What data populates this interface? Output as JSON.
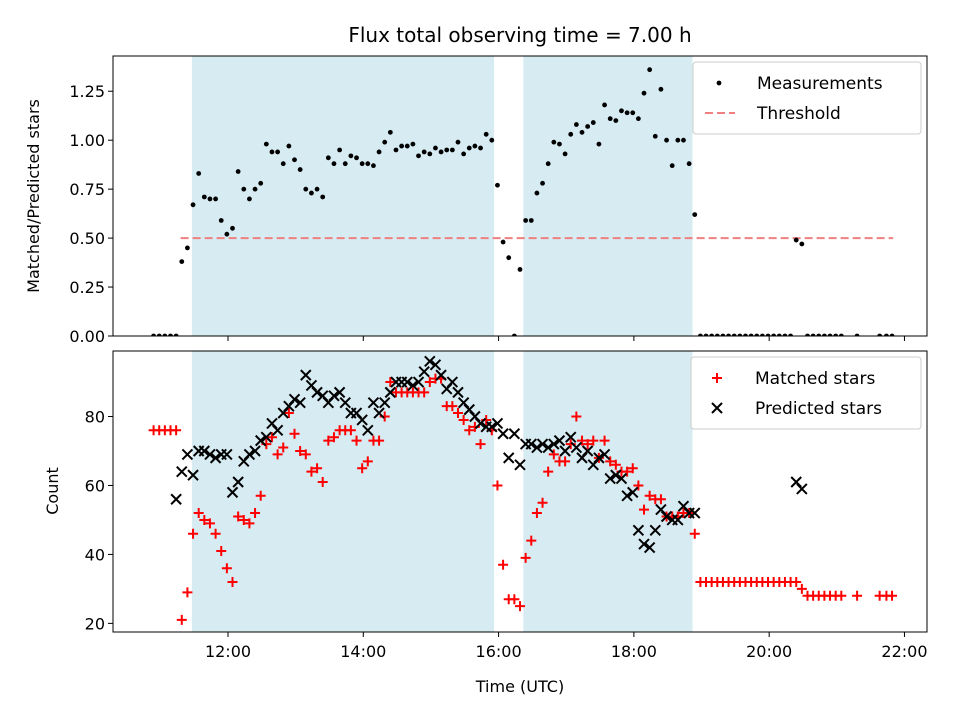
{
  "chart_data": [
    {
      "type": "scatter",
      "title": "Flux total observing time = 7.00 h",
      "xlabel": "",
      "ylabel": "Matched/Predicted stars",
      "xlim": [
        "10:18",
        "22:20"
      ],
      "ylim": [
        0,
        1.43
      ],
      "yticks": [
        "0.00",
        "0.25",
        "0.50",
        "0.75",
        "1.00",
        "1.25"
      ],
      "legend_position": "top-right",
      "shaded_spans": [
        [
          "11:28",
          "15:56"
        ],
        [
          "16:22",
          "18:52"
        ]
      ],
      "threshold": {
        "name": "Threshold",
        "color": "#f08080",
        "value": 0.5,
        "x_range": [
          "11:18",
          "21:50"
        ]
      },
      "series": [
        {
          "name": "Measurements",
          "color": "#000000",
          "marker": "dot",
          "x": [
            "10:54",
            "10:59",
            "11:04",
            "11:09",
            "11:14",
            "11:19",
            "11:24",
            "11:29",
            "11:34",
            "11:39",
            "11:44",
            "11:49",
            "11:54",
            "11:59",
            "12:04",
            "12:09",
            "12:14",
            "12:19",
            "12:24",
            "12:29",
            "12:34",
            "12:39",
            "12:44",
            "12:49",
            "12:54",
            "12:59",
            "13:04",
            "13:09",
            "13:14",
            "13:19",
            "13:24",
            "13:29",
            "13:34",
            "13:39",
            "13:44",
            "13:49",
            "13:54",
            "13:59",
            "14:04",
            "14:09",
            "14:14",
            "14:19",
            "14:24",
            "14:29",
            "14:34",
            "14:39",
            "14:44",
            "14:49",
            "14:54",
            "14:59",
            "15:04",
            "15:09",
            "15:14",
            "15:19",
            "15:24",
            "15:29",
            "15:34",
            "15:39",
            "15:44",
            "15:49",
            "15:54",
            "15:59",
            "16:04",
            "16:09",
            "16:14",
            "16:19",
            "16:24",
            "16:29",
            "16:34",
            "16:39",
            "16:44",
            "16:49",
            "16:54",
            "16:59",
            "17:04",
            "17:09",
            "17:14",
            "17:19",
            "17:24",
            "17:29",
            "17:34",
            "17:39",
            "17:44",
            "17:49",
            "17:54",
            "17:59",
            "18:04",
            "18:09",
            "18:14",
            "18:19",
            "18:24",
            "18:29",
            "18:34",
            "18:39",
            "18:44",
            "18:49",
            "18:54",
            "18:59",
            "19:04",
            "19:09",
            "19:14",
            "19:19",
            "19:24",
            "19:29",
            "19:34",
            "19:39",
            "19:44",
            "19:49",
            "19:54",
            "19:59",
            "20:04",
            "20:09",
            "20:14",
            "20:19",
            "20:24",
            "20:29",
            "20:34",
            "20:39",
            "20:44",
            "20:49",
            "20:54",
            "20:59",
            "21:04",
            "21:18",
            "21:38",
            "21:44",
            "21:49"
          ],
          "y": [
            0,
            0,
            0,
            0,
            0,
            0.38,
            0.45,
            0.67,
            0.83,
            0.71,
            0.7,
            0.7,
            0.59,
            0.52,
            0.55,
            0.84,
            0.75,
            0.7,
            0.75,
            0.78,
            0.98,
            0.94,
            0.94,
            0.88,
            0.97,
            0.9,
            0.85,
            0.75,
            0.73,
            0.75,
            0.71,
            0.91,
            0.88,
            0.95,
            0.88,
            0.92,
            0.91,
            0.88,
            0.88,
            0.87,
            0.94,
            0.99,
            1.04,
            0.95,
            0.97,
            0.97,
            0.98,
            0.92,
            0.94,
            0.93,
            0.96,
            0.94,
            0.95,
            0.95,
            0.99,
            0.93,
            0.96,
            0.97,
            0.96,
            1.03,
            1.0,
            0.77,
            0.48,
            0.4,
            0.0,
            0.34,
            0.59,
            0.59,
            0.73,
            0.78,
            0.88,
            0.99,
            0.98,
            0.93,
            1.03,
            1.08,
            1.04,
            1.07,
            1.09,
            0.98,
            1.18,
            1.11,
            1.1,
            1.15,
            1.14,
            1.14,
            1.11,
            1.24,
            1.36,
            1.02,
            1.26,
            1.0,
            0.87,
            1.0,
            1.0,
            0.88,
            0.62,
            0,
            0,
            0,
            0,
            0,
            0,
            0,
            0,
            0,
            0,
            0,
            0,
            0,
            0,
            0,
            0,
            0,
            0.49,
            0.47,
            0,
            0,
            0,
            0,
            0,
            0,
            0,
            0,
            0,
            0,
            0
          ]
        }
      ]
    },
    {
      "type": "scatter",
      "title": "",
      "xlabel": "Time (UTC)",
      "ylabel": "Count",
      "xlim": [
        "10:18",
        "22:20"
      ],
      "ylim": [
        17.5,
        99
      ],
      "yticks": [
        "20",
        "40",
        "60",
        "80"
      ],
      "xticks": [
        "12:00",
        "14:00",
        "16:00",
        "18:00",
        "20:00",
        "22:00"
      ],
      "legend_position": "top-right",
      "shaded_spans": [
        [
          "11:28",
          "15:56"
        ],
        [
          "16:22",
          "18:52"
        ]
      ],
      "series": [
        {
          "name": "Matched stars",
          "color": "#ff0000",
          "marker": "plus",
          "x": [
            "10:54",
            "10:59",
            "11:04",
            "11:09",
            "11:14",
            "11:19",
            "11:24",
            "11:29",
            "11:34",
            "11:39",
            "11:44",
            "11:49",
            "11:54",
            "11:59",
            "12:04",
            "12:09",
            "12:14",
            "12:19",
            "12:24",
            "12:29",
            "12:34",
            "12:39",
            "12:44",
            "12:49",
            "12:54",
            "12:59",
            "13:04",
            "13:09",
            "13:14",
            "13:19",
            "13:24",
            "13:29",
            "13:34",
            "13:39",
            "13:44",
            "13:49",
            "13:54",
            "13:59",
            "14:04",
            "14:09",
            "14:14",
            "14:19",
            "14:24",
            "14:29",
            "14:34",
            "14:39",
            "14:44",
            "14:49",
            "14:54",
            "14:59",
            "15:04",
            "15:09",
            "15:14",
            "15:19",
            "15:24",
            "15:29",
            "15:34",
            "15:39",
            "15:44",
            "15:49",
            "15:54",
            "15:59",
            "16:04",
            "16:09",
            "16:14",
            "16:19",
            "16:24",
            "16:29",
            "16:34",
            "16:39",
            "16:44",
            "16:49",
            "16:54",
            "16:59",
            "17:04",
            "17:09",
            "17:14",
            "17:19",
            "17:24",
            "17:29",
            "17:34",
            "17:39",
            "17:44",
            "17:49",
            "17:54",
            "17:59",
            "18:04",
            "18:09",
            "18:14",
            "18:19",
            "18:24",
            "18:29",
            "18:34",
            "18:39",
            "18:44",
            "18:49",
            "18:54",
            "18:59",
            "19:04",
            "19:09",
            "19:14",
            "19:19",
            "19:24",
            "19:29",
            "19:34",
            "19:39",
            "19:44",
            "19:49",
            "19:54",
            "19:59",
            "20:04",
            "20:09",
            "20:14",
            "20:19",
            "20:24",
            "20:29",
            "20:34",
            "20:39",
            "20:44",
            "20:49",
            "20:54",
            "20:59",
            "21:04",
            "21:18",
            "21:38",
            "21:44",
            "21:49"
          ],
          "y": [
            76,
            76,
            76,
            76,
            76,
            21,
            29,
            46,
            52,
            50,
            49,
            46,
            41,
            36,
            32,
            51,
            50,
            49,
            52,
            57,
            72,
            74,
            69,
            71,
            81,
            75,
            70,
            69,
            64,
            65,
            61,
            73,
            74,
            76,
            76,
            76,
            73,
            65,
            67,
            73,
            73,
            80,
            90,
            87,
            87,
            87,
            87,
            87,
            87,
            90,
            91,
            91,
            83,
            83,
            81,
            79,
            76,
            77,
            72,
            79,
            76,
            60,
            37,
            27,
            27,
            25,
            39,
            44,
            52,
            55,
            64,
            69,
            67,
            67,
            72,
            80,
            73,
            72,
            73,
            68,
            73,
            67,
            66,
            64,
            64,
            65,
            60,
            53,
            57,
            56,
            56,
            51,
            51,
            51,
            52,
            52,
            46,
            32,
            32,
            32,
            32,
            32,
            32,
            32,
            32,
            32,
            32,
            32,
            32,
            32,
            32,
            32,
            32,
            32,
            32,
            30,
            28,
            28,
            28,
            28,
            28,
            28,
            28,
            28,
            28,
            28,
            28
          ]
        },
        {
          "name": "Predicted stars",
          "color": "#000000",
          "marker": "x",
          "x": [
            "11:14",
            "11:19",
            "11:24",
            "11:29",
            "11:34",
            "11:39",
            "11:44",
            "11:49",
            "11:54",
            "11:59",
            "12:04",
            "12:09",
            "12:14",
            "12:19",
            "12:24",
            "12:29",
            "12:34",
            "12:39",
            "12:44",
            "12:49",
            "12:54",
            "12:59",
            "13:04",
            "13:09",
            "13:14",
            "13:19",
            "13:24",
            "13:29",
            "13:34",
            "13:39",
            "13:44",
            "13:49",
            "13:54",
            "13:59",
            "14:04",
            "14:09",
            "14:14",
            "14:19",
            "14:24",
            "14:29",
            "14:34",
            "14:39",
            "14:44",
            "14:49",
            "14:54",
            "14:59",
            "15:04",
            "15:09",
            "15:14",
            "15:19",
            "15:24",
            "15:29",
            "15:34",
            "15:39",
            "15:44",
            "15:49",
            "15:54",
            "15:59",
            "16:04",
            "16:09",
            "16:14",
            "16:19",
            "16:24",
            "16:29",
            "16:34",
            "16:39",
            "16:44",
            "16:49",
            "16:54",
            "16:59",
            "17:04",
            "17:09",
            "17:14",
            "17:19",
            "17:24",
            "17:29",
            "17:34",
            "17:39",
            "17:44",
            "17:49",
            "17:54",
            "17:59",
            "18:04",
            "18:09",
            "18:14",
            "18:19",
            "18:24",
            "18:29",
            "18:34",
            "18:39",
            "18:44",
            "18:49",
            "18:54",
            "20:24",
            "20:29"
          ],
          "y": [
            56,
            64,
            69,
            63,
            70,
            70,
            69,
            68,
            69,
            69,
            58,
            61,
            67,
            69,
            70,
            73,
            74,
            78,
            76,
            81,
            83,
            85,
            84,
            92,
            89,
            87,
            86,
            84,
            86,
            87,
            84,
            81,
            81,
            79,
            76,
            84,
            81,
            84,
            87,
            90,
            90,
            90,
            89,
            90,
            93,
            96,
            95,
            92,
            88,
            90,
            87,
            84,
            82,
            80,
            78,
            77,
            77,
            78,
            75,
            68,
            75,
            66,
            72,
            72,
            71,
            72,
            71,
            72,
            73,
            70,
            74,
            71,
            68,
            70,
            66,
            68,
            69,
            62,
            63,
            62,
            57,
            58,
            47,
            43,
            42,
            47,
            53,
            51,
            50,
            50,
            54,
            52,
            52,
            61,
            59
          ]
        }
      ]
    }
  ]
}
